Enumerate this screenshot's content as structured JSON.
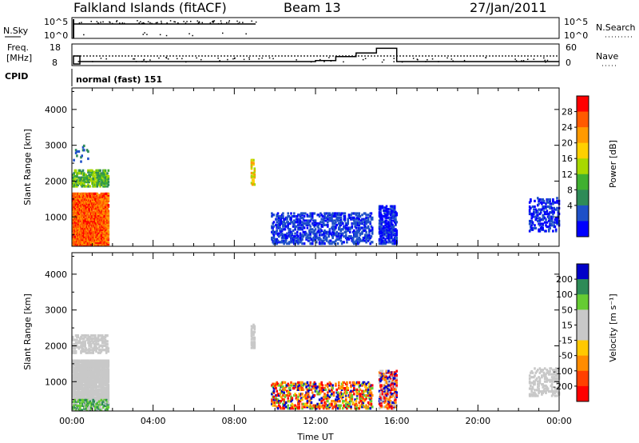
{
  "header": {
    "station": "Falkland Islands (fitACF)",
    "beam": "Beam 13",
    "date": "27/Jan/2011"
  },
  "strip": {
    "nsky_label": "N.Sky",
    "nsky_ticks": [
      "10^5",
      "10^0"
    ],
    "nsearch_label": "N.Search",
    "freq_label": "Freq.",
    "freq_unit": "[MHz]",
    "freq_ticks": [
      "18",
      "8"
    ],
    "nave_ticks": [
      "60",
      "0"
    ],
    "nave_label": "Nave",
    "cpid_label": "CPID",
    "cpid_value": "normal (fast) 151",
    "nave_steps": [
      {
        "start_h": 0.3,
        "end_h": 12.0,
        "nave": 11
      },
      {
        "start_h": 12.0,
        "end_h": 13.0,
        "nave": 14
      },
      {
        "start_h": 13.0,
        "end_h": 14.0,
        "nave": 25
      },
      {
        "start_h": 14.0,
        "end_h": 15.0,
        "nave": 35
      },
      {
        "start_h": 15.0,
        "end_h": 16.0,
        "nave": 48
      },
      {
        "start_h": 16.0,
        "end_h": 24.0,
        "nave": 11
      }
    ]
  },
  "chart_data": [
    {
      "type": "heatmap",
      "panel": "power",
      "ylabel": "Slant Range [km]",
      "xlabel": "",
      "ylim": [
        180,
        4600
      ],
      "xlim": [
        0,
        24
      ],
      "yticks": [
        1000,
        2000,
        3000,
        4000
      ],
      "colorbar": {
        "label": "Power [dB]",
        "ticks": [
          "28",
          "24",
          "20",
          "16",
          "12",
          "8",
          "4"
        ],
        "colors": [
          "#ff0000",
          "#ff5a00",
          "#ff9a00",
          "#ffd000",
          "#a8d800",
          "#40b030",
          "#2e8b57",
          "#1e50c8",
          "#0000ff"
        ]
      },
      "regions": [
        {
          "t0": 0.0,
          "t1": 1.8,
          "r0": 200,
          "r1": 1650,
          "colors": [
            0,
            1,
            1,
            2
          ],
          "density": 0.85
        },
        {
          "t0": 0.0,
          "t1": 1.8,
          "r0": 1850,
          "r1": 2300,
          "colors": [
            5,
            4,
            6
          ],
          "density": 0.55
        },
        {
          "t0": 0.0,
          "t1": 1.0,
          "r0": 2500,
          "r1": 3000,
          "colors": [
            6,
            7
          ],
          "density": 0.08
        },
        {
          "t0": 8.8,
          "t1": 9.0,
          "r0": 1900,
          "r1": 2600,
          "colors": [
            2,
            3,
            4
          ],
          "density": 0.5
        },
        {
          "t0": 9.8,
          "t1": 14.8,
          "r0": 250,
          "r1": 1100,
          "colors": [
            7,
            8,
            7
          ],
          "density": 0.32
        },
        {
          "t0": 15.1,
          "t1": 16.0,
          "r0": 250,
          "r1": 1300,
          "colors": [
            8,
            7
          ],
          "density": 0.5
        },
        {
          "t0": 22.5,
          "t1": 24.0,
          "r0": 600,
          "r1": 1550,
          "colors": [
            7,
            8
          ],
          "density": 0.3
        }
      ]
    },
    {
      "type": "heatmap",
      "panel": "velocity",
      "ylabel": "Slant Range [km]",
      "xlabel": "Time UT",
      "ylim": [
        180,
        4600
      ],
      "xlim": [
        0,
        24
      ],
      "yticks": [
        1000,
        2000,
        3000,
        4000
      ],
      "xticks": [
        "00:00",
        "04:00",
        "08:00",
        "12:00",
        "16:00",
        "20:00",
        "00:00"
      ],
      "colorbar": {
        "label": "Velocity [m s⁻¹]",
        "ticks": [
          "200",
          "100",
          "50",
          "15",
          "-15",
          "-50",
          "-100",
          "-200"
        ],
        "colors": [
          "#0000c8",
          "#2e8b57",
          "#66cc33",
          "#c8c8c8",
          "#c8c8c8",
          "#ffc800",
          "#ff8c00",
          "#ff4000",
          "#ff0000"
        ]
      },
      "regions": [
        {
          "t0": 0.0,
          "t1": 1.8,
          "r0": 500,
          "r1": 1600,
          "colors": [
            3,
            4,
            3
          ],
          "density": 0.85
        },
        {
          "t0": 0.0,
          "t1": 1.8,
          "r0": 200,
          "r1": 500,
          "colors": [
            2,
            1,
            3
          ],
          "density": 0.5
        },
        {
          "t0": 0.0,
          "t1": 1.8,
          "r0": 1800,
          "r1": 2300,
          "colors": [
            3,
            4
          ],
          "density": 0.4
        },
        {
          "t0": 8.8,
          "t1": 9.0,
          "r0": 1900,
          "r1": 2600,
          "colors": [
            3
          ],
          "density": 0.5
        },
        {
          "t0": 9.8,
          "t1": 14.8,
          "r0": 250,
          "r1": 1000,
          "colors": [
            0,
            8,
            7,
            5,
            2,
            6
          ],
          "density": 0.32
        },
        {
          "t0": 15.1,
          "t1": 16.0,
          "r0": 250,
          "r1": 1300,
          "colors": [
            3,
            8,
            0,
            6
          ],
          "density": 0.45
        },
        {
          "t0": 22.5,
          "t1": 24.0,
          "r0": 600,
          "r1": 1400,
          "colors": [
            3,
            4
          ],
          "density": 0.3
        }
      ]
    }
  ]
}
